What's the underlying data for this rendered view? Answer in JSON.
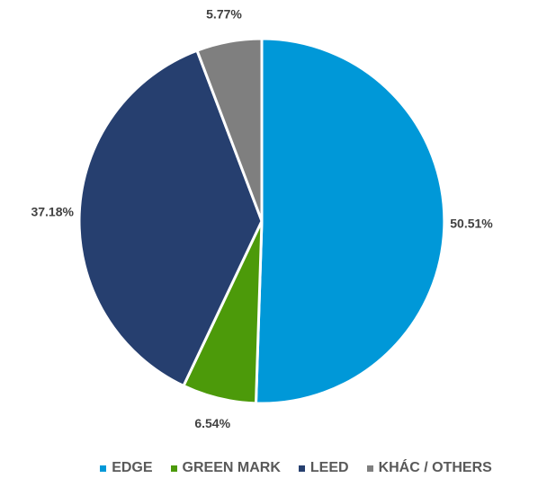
{
  "chart_data": {
    "type": "pie",
    "title": "",
    "categories": [
      "EDGE",
      "GREEN MARK",
      "LEED",
      "KHÁC / OTHERS"
    ],
    "values": [
      50.51,
      6.54,
      37.18,
      5.77
    ],
    "labels": [
      "50.51%",
      "6.54%",
      "37.18%",
      "5.77%"
    ],
    "colors": [
      "#0098D8",
      "#4C9A0A",
      "#263F6F",
      "#7F7F7F"
    ],
    "start_angle_deg": 0,
    "direction": "clockwise",
    "legend": {
      "position": "bottom",
      "marker_shape": "square"
    }
  }
}
